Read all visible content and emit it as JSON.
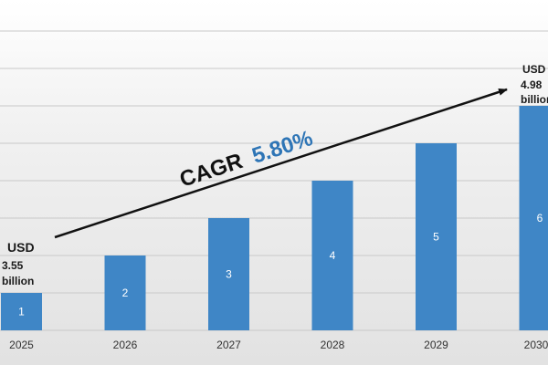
{
  "chart_data": {
    "type": "bar",
    "categories": [
      "2025",
      "2026",
      "2027",
      "2028",
      "2029",
      "2030"
    ],
    "values": [
      1,
      2,
      3,
      4,
      5,
      6
    ],
    "bar_labels": [
      "1",
      "2",
      "3",
      "4",
      "5",
      "6"
    ],
    "ylim": [
      0,
      7
    ],
    "grid": true,
    "bar_color": "#3f86c6",
    "annotations": {
      "start": {
        "currency": "USD",
        "value": "3.55",
        "unit": "billion"
      },
      "end": {
        "currency": "USD",
        "value": "4.98",
        "unit": "billion"
      },
      "cagr_label": "CAGR",
      "cagr_value": "5.80%",
      "cagr_value_color": "#2e75b6"
    }
  }
}
